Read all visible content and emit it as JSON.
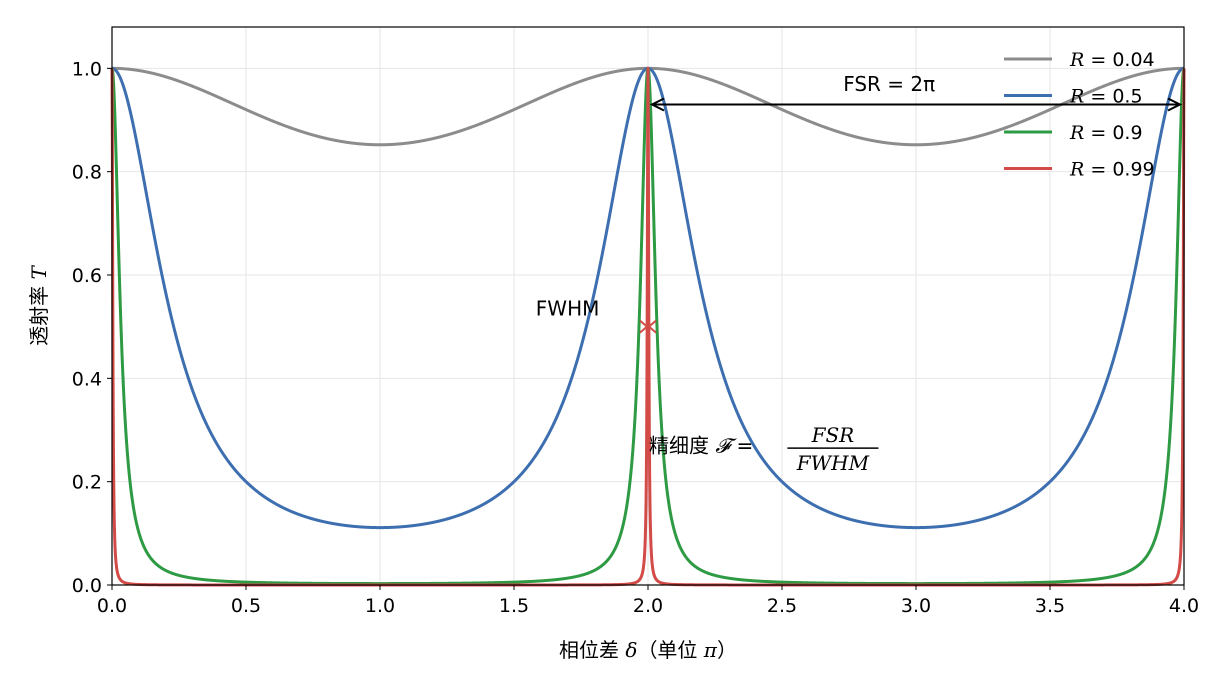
{
  "chart_data": {
    "type": "line",
    "xlabel_prefix": "相位差 ",
    "xlabel_symbol": "δ",
    "xlabel_suffix_open": "（单位 ",
    "xlabel_suffix_symbol": "π",
    "xlabel_suffix_close": "）",
    "ylabel_prefix": "透射率 ",
    "ylabel_symbol": "T",
    "xlim": [
      0,
      4
    ],
    "ylim": [
      0,
      1.08
    ],
    "x_ticks": [
      "0.0",
      "0.5",
      "1.0",
      "1.5",
      "2.0",
      "2.5",
      "3.0",
      "3.5",
      "4.0"
    ],
    "x_tick_values": [
      0,
      0.5,
      1,
      1.5,
      2,
      2.5,
      3,
      3.5,
      4
    ],
    "y_ticks": [
      "0.0",
      "0.2",
      "0.4",
      "0.6",
      "0.8",
      "1.0"
    ],
    "y_tick_values": [
      0,
      0.2,
      0.4,
      0.6,
      0.8,
      1.0
    ],
    "grid": true,
    "legend_position": "top-right",
    "series": [
      {
        "name": "R = 0.04",
        "legend_var": "R",
        "legend_eq": " = ",
        "legend_val": "0.04",
        "R": 0.04,
        "color": "#8c8c8c"
      },
      {
        "name": "R = 0.5",
        "legend_var": "R",
        "legend_eq": " = ",
        "legend_val": "0.5",
        "R": 0.5,
        "color": "#3d6fb0"
      },
      {
        "name": "R = 0.9",
        "legend_var": "R",
        "legend_eq": " = ",
        "legend_val": "0.9",
        "R": 0.9,
        "color": "#2e9a44"
      },
      {
        "name": "R = 0.99",
        "legend_var": "R",
        "legend_eq": " = ",
        "legend_val": "0.99",
        "R": 0.99,
        "color": "#d24b47"
      }
    ],
    "annotations": {
      "fsr_label": "FSR = 2π",
      "fsr_arrow": {
        "x_start": 2.0,
        "x_end": 4.0,
        "y": 0.93
      },
      "fwhm_label": "FWHM",
      "fwhm_color": "#d24b47",
      "fwhm_marker": {
        "x": 2.0,
        "y": 0.5
      },
      "finesse_prefix": "精细度 ",
      "finesse_symbol": "𝓕",
      "finesse_eq": " = ",
      "finesse_num": "FSR",
      "finesse_den": "FWHM"
    }
  }
}
